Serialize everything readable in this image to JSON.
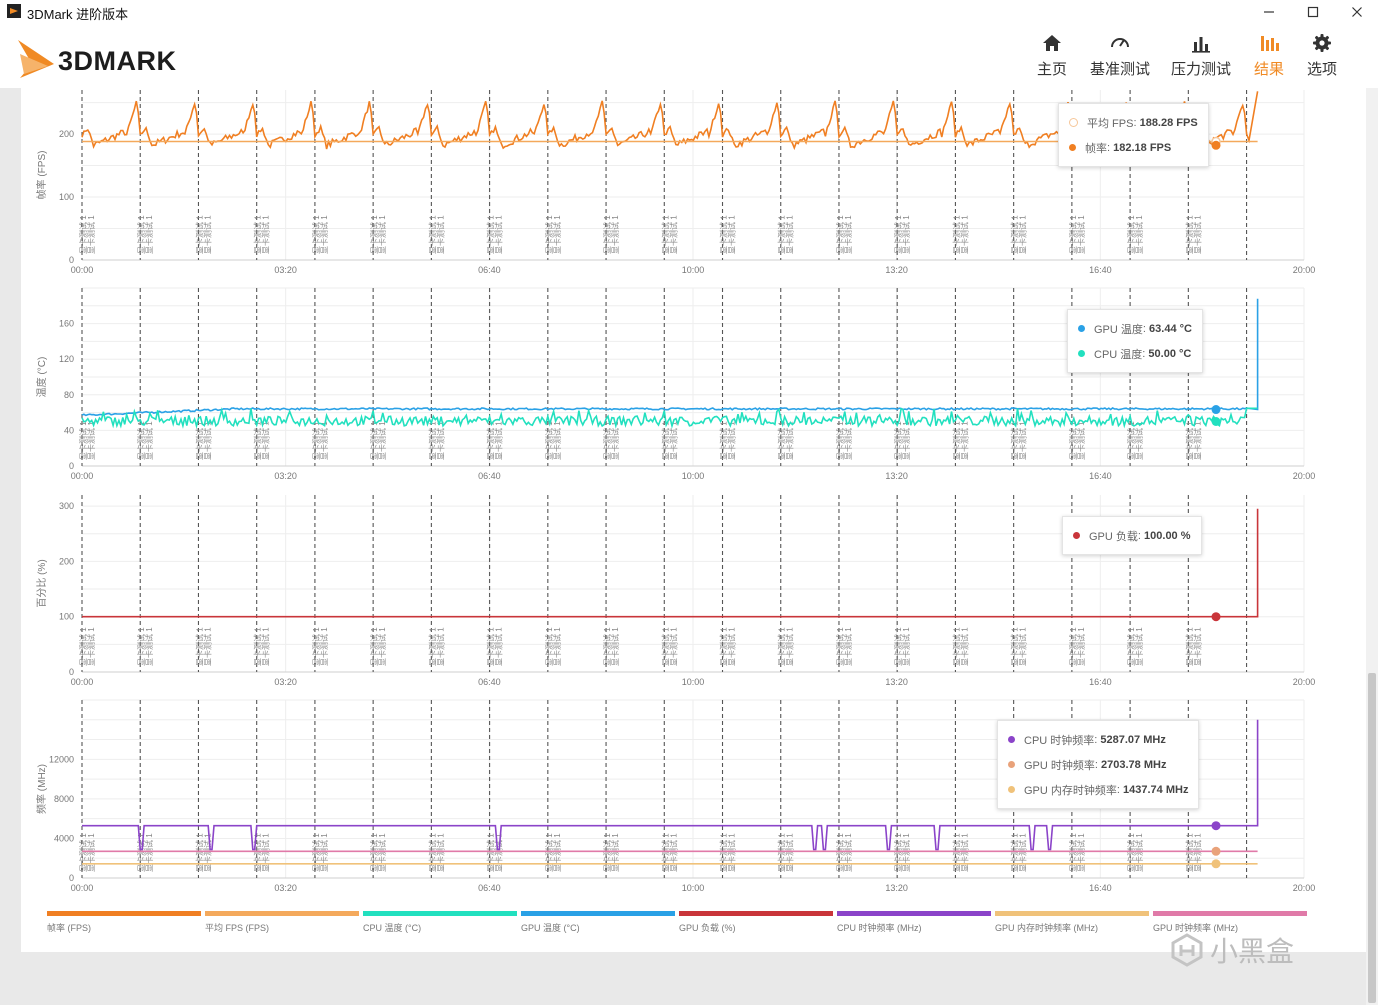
{
  "window": {
    "title": "3DMark 进阶版本",
    "controls": [
      "minimize-icon",
      "maximize-icon",
      "close-icon"
    ]
  },
  "header": {
    "logo_text": "3DMARK",
    "nav": [
      {
        "label": "主页",
        "icon": "home-icon",
        "active": false
      },
      {
        "label": "基准测试",
        "icon": "gauge-icon",
        "active": false
      },
      {
        "label": "压力测试",
        "icon": "bar-chart-icon",
        "active": false
      },
      {
        "label": "结果",
        "icon": "results-icon",
        "active": true
      },
      {
        "label": "选项",
        "icon": "gear-icon",
        "active": false
      }
    ],
    "active_color": "#f08a24"
  },
  "marker_label": "显卡测试 1",
  "chart_data": [
    {
      "type": "line",
      "ylabel": "帧率 (FPS)",
      "xlim": [
        "00:00",
        "20:00"
      ],
      "x_ticks": [
        "00:00",
        "03:20",
        "06:40",
        "10:00",
        "13:20",
        "16:40",
        "20:00"
      ],
      "ylim": [
        0,
        270
      ],
      "y_ticks": [
        0,
        100,
        200
      ],
      "series": [
        {
          "name": "帧率",
          "color": "#f07f22",
          "approx_range": [
            165,
            265
          ],
          "end": 182.18
        },
        {
          "name": "平均 FPS",
          "color": "#f4a95c",
          "constant": 188.28
        }
      ],
      "tooltip": [
        {
          "label": "平均 FPS",
          "value": "188.28 FPS",
          "color": "#f6c79a",
          "hollow": true
        },
        {
          "label": "帧率",
          "value": "182.18 FPS",
          "color": "#f07f22"
        }
      ]
    },
    {
      "type": "line",
      "ylabel": "温度 (°C)",
      "xlim": [
        "00:00",
        "20:00"
      ],
      "x_ticks": [
        "00:00",
        "03:20",
        "06:40",
        "10:00",
        "13:20",
        "16:40",
        "20:00"
      ],
      "ylim": [
        0,
        200
      ],
      "y_ticks": [
        0,
        40,
        80,
        120,
        160
      ],
      "series": [
        {
          "name": "GPU 温度",
          "color": "#2aa1e6",
          "approx_range": [
            56,
            64
          ],
          "end": 63.44,
          "spike": 188
        },
        {
          "name": "CPU 温度",
          "color": "#22e0bf",
          "approx_range": [
            45,
            65
          ],
          "end": 50.0
        }
      ],
      "tooltip": [
        {
          "label": "GPU 温度",
          "value": "63.44 °C",
          "color": "#2aa1e6"
        },
        {
          "label": "CPU 温度",
          "value": "50.00 °C",
          "color": "#22e0bf"
        }
      ]
    },
    {
      "type": "line",
      "ylabel": "百分比 (%)",
      "xlim": [
        "00:00",
        "20:00"
      ],
      "x_ticks": [
        "00:00",
        "03:20",
        "06:40",
        "10:00",
        "13:20",
        "16:40",
        "20:00"
      ],
      "ylim": [
        0,
        320
      ],
      "y_ticks": [
        0,
        100,
        200,
        300
      ],
      "series": [
        {
          "name": "GPU 负载",
          "color": "#c9353a",
          "constant": 100.0,
          "spike": 295
        }
      ],
      "tooltip": [
        {
          "label": "GPU 负载",
          "value": "100.00 %",
          "color": "#c9353a"
        }
      ]
    },
    {
      "type": "line",
      "ylabel": "频率 (MHz)",
      "xlim": [
        "00:00",
        "20:00"
      ],
      "x_ticks": [
        "00:00",
        "03:20",
        "06:40",
        "10:00",
        "13:20",
        "16:40",
        "20:00"
      ],
      "ylim": [
        0,
        18000
      ],
      "y_ticks": [
        0,
        4000,
        8000,
        12000
      ],
      "series": [
        {
          "name": "CPU 时钟频率",
          "color": "#8b44c9",
          "constant": 5287.07,
          "spike": 16000
        },
        {
          "name": "GPU 时钟频率",
          "color": "#e07aa8",
          "constant": 2703.78
        },
        {
          "name": "GPU 内存时钟频率",
          "color": "#f0c27a",
          "constant": 1437.74
        }
      ],
      "tooltip": [
        {
          "label": "CPU 时钟频率",
          "value": "5287.07 MHz",
          "color": "#8b44c9"
        },
        {
          "label": "GPU 时钟频率",
          "value": "2703.78 MHz",
          "color": "#e9a27a"
        },
        {
          "label": "GPU 内存时钟频率",
          "value": "1437.74 MHz",
          "color": "#f0c27a"
        }
      ]
    }
  ],
  "legend": [
    {
      "label": "帧率 (FPS)",
      "color": "#f07f22"
    },
    {
      "label": "平均 FPS (FPS)",
      "color": "#f4a95c"
    },
    {
      "label": "CPU 温度 (°C)",
      "color": "#22e0bf"
    },
    {
      "label": "GPU 温度 (°C)",
      "color": "#2aa1e6"
    },
    {
      "label": "GPU 负载 (%)",
      "color": "#c9353a"
    },
    {
      "label": "CPU 时钟频率 (MHz)",
      "color": "#8b44c9"
    },
    {
      "label": "GPU 内存时钟频率 (MHz)",
      "color": "#f0c27a"
    },
    {
      "label": "GPU 时钟频率 (MHz)",
      "color": "#e07aa8"
    }
  ],
  "watermark": "小黑盒"
}
